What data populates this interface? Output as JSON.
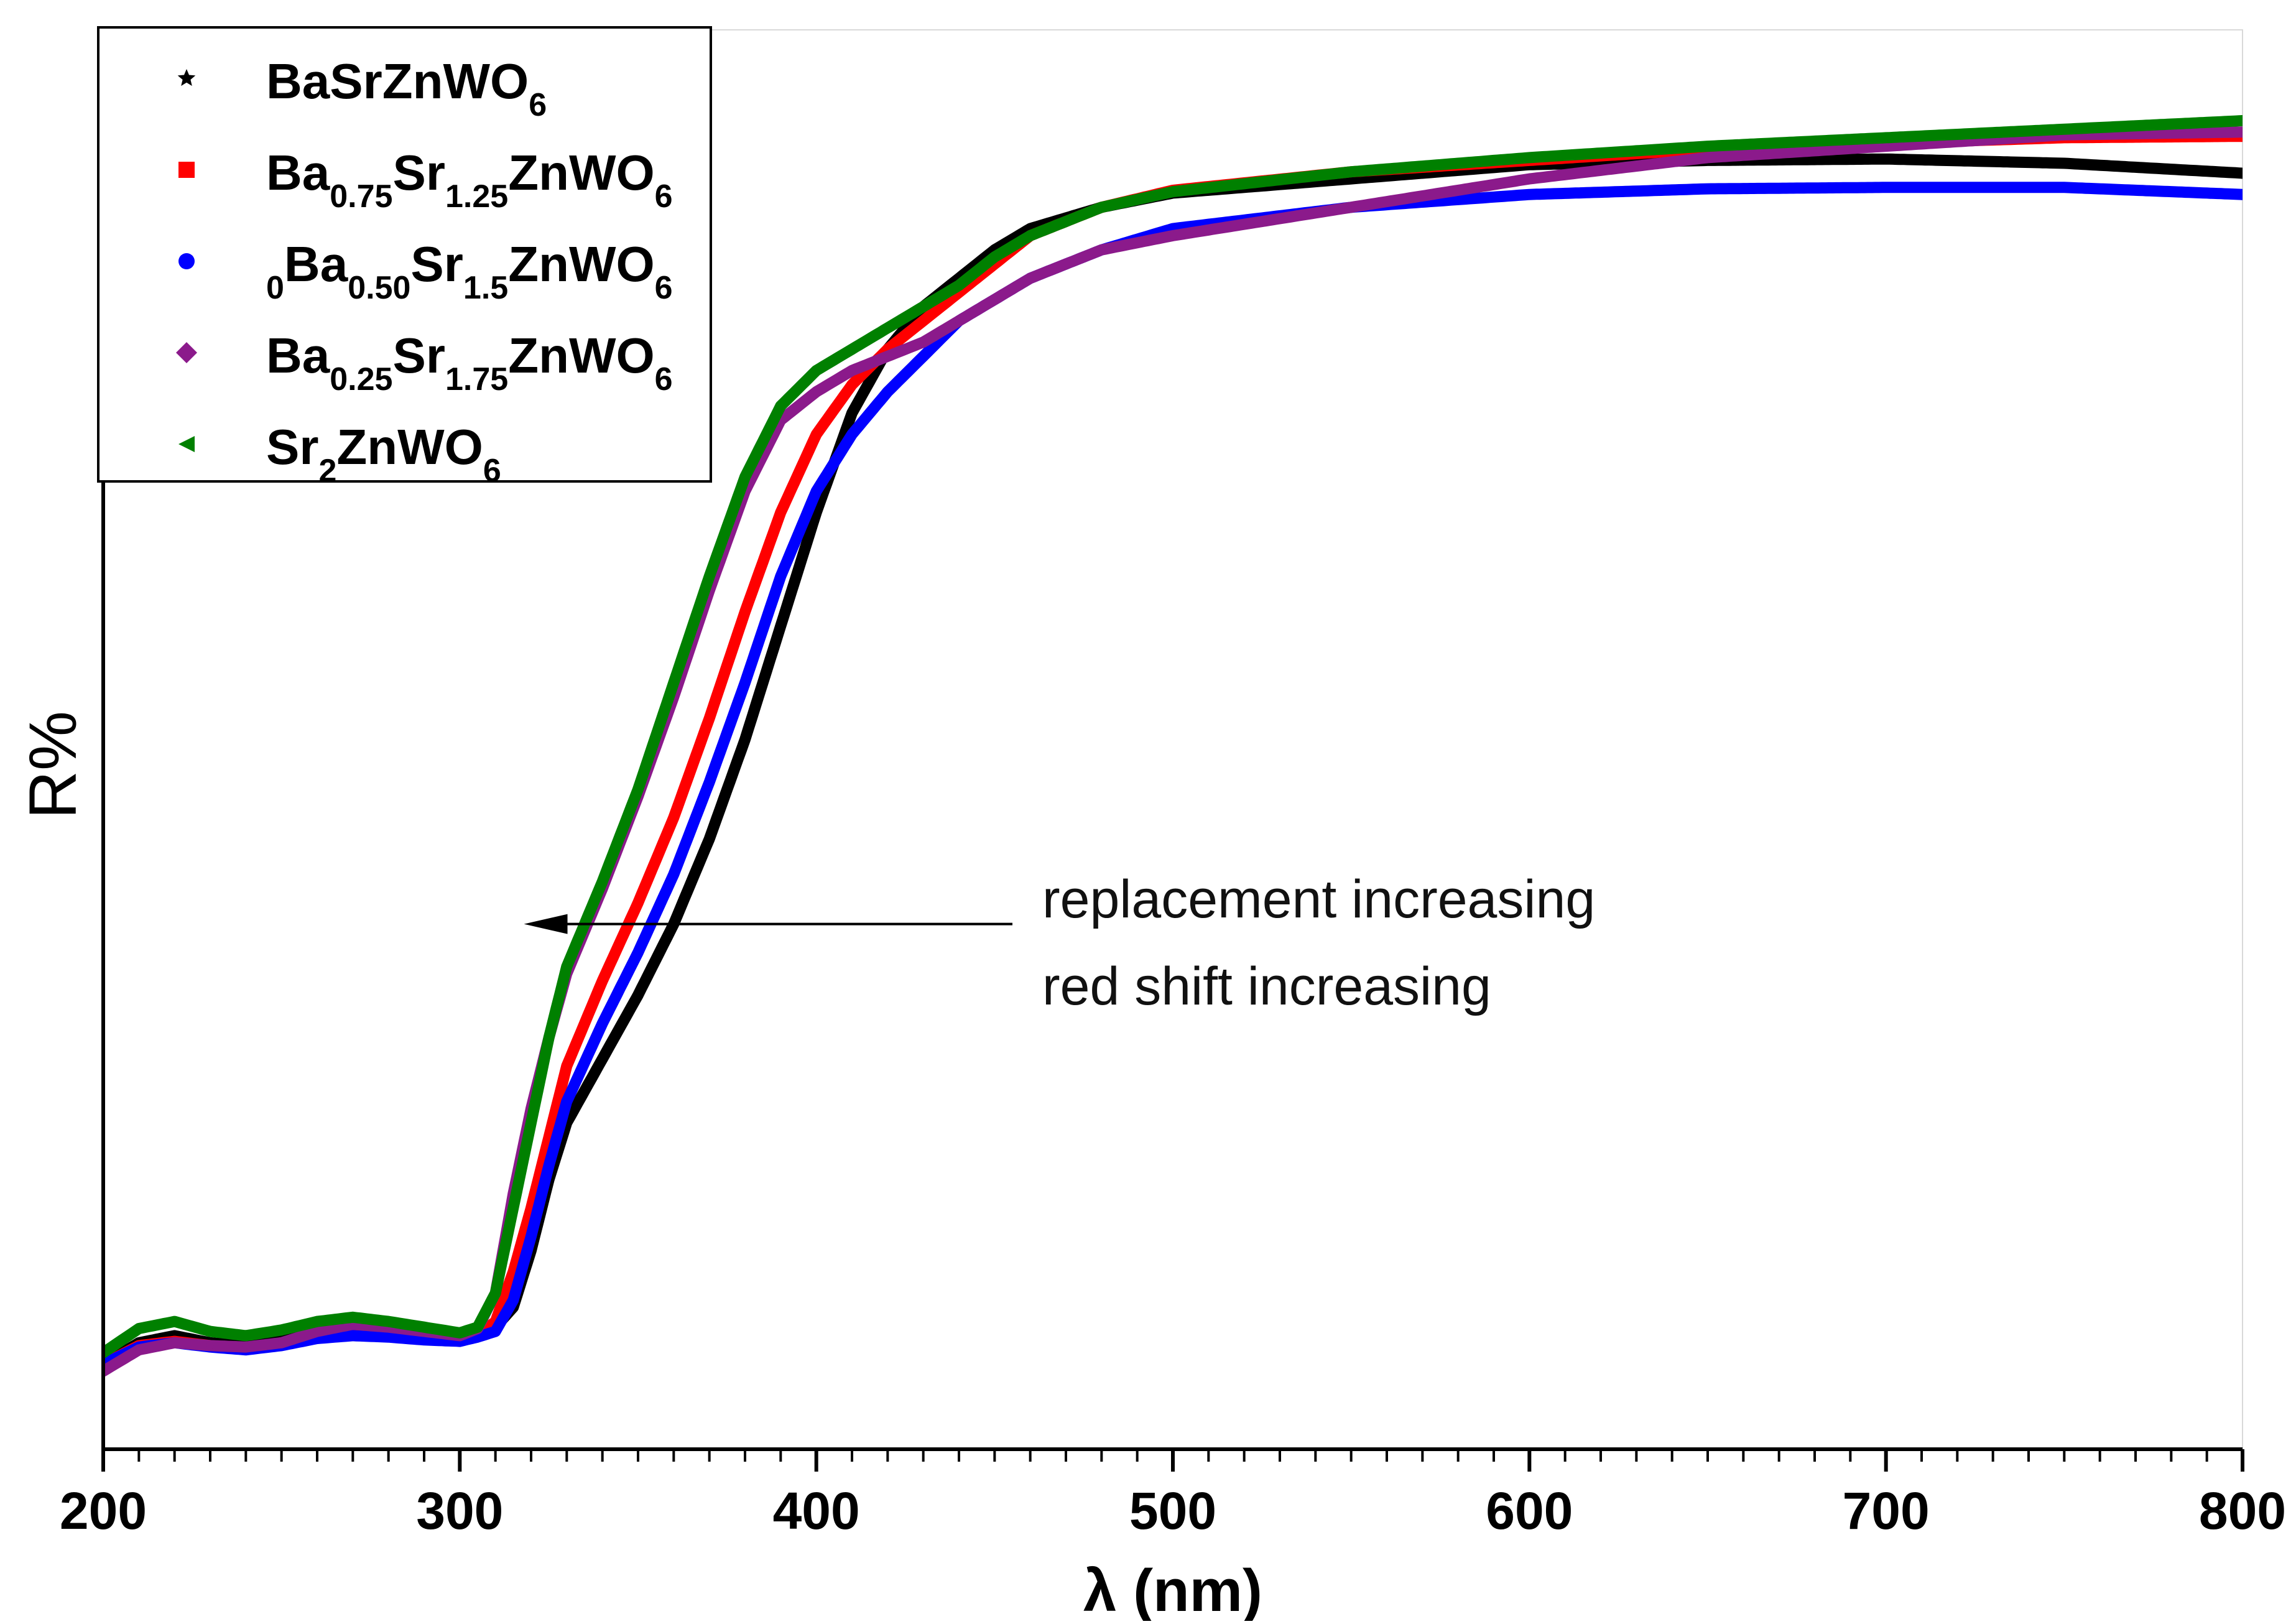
{
  "chart_data": {
    "type": "line",
    "title": "",
    "xlabel": "λ (nm)",
    "ylabel": "R%",
    "xlim": [
      200,
      800
    ],
    "ylim": [
      0,
      100
    ],
    "x_ticks": [
      "200",
      "300",
      "400",
      "500",
      "600",
      "700",
      "800"
    ],
    "y_ticks": [],
    "grid": false,
    "legend_position": "top-left",
    "annotation": {
      "lines": [
        "replacement increasing",
        "red shift increasing"
      ],
      "arrow": "left",
      "arrow_from_x": 455,
      "arrow_to_x": 318,
      "arrow_y": 37
    },
    "series": [
      {
        "name": "BaSrZnWO6",
        "label_parts": [
          [
            "BaSrZnWO",
            ""
          ],
          [
            "6",
            "sub"
          ]
        ],
        "color": "#000000",
        "marker": "star",
        "x": [
          200,
          210,
          220,
          230,
          240,
          250,
          260,
          270,
          280,
          290,
          300,
          305,
          310,
          315,
          320,
          325,
          330,
          340,
          350,
          360,
          370,
          380,
          390,
          400,
          410,
          420,
          430,
          440,
          450,
          460,
          480,
          500,
          550,
          600,
          650,
          700,
          750,
          800
        ],
        "y": [
          6.0,
          7.5,
          8.0,
          7.5,
          7.3,
          7.8,
          8.5,
          8.8,
          8.6,
          8.3,
          8.0,
          8.2,
          8.6,
          10.0,
          14.0,
          19.0,
          23.0,
          27.5,
          32.0,
          37.0,
          43.0,
          50.0,
          58.0,
          66.0,
          73.0,
          77.5,
          80.5,
          82.5,
          84.5,
          86.0,
          87.5,
          88.5,
          89.5,
          90.5,
          90.8,
          90.9,
          90.6,
          89.9
        ]
      },
      {
        "name": "Ba0.75Sr1.25ZnWO6",
        "label_parts": [
          [
            "Ba",
            ""
          ],
          [
            "0.75",
            "sub"
          ],
          [
            "Sr",
            ""
          ],
          [
            "1.25",
            "sub"
          ],
          [
            "ZnWO",
            ""
          ],
          [
            "6",
            "sub"
          ]
        ],
        "color": "#ff0000",
        "marker": "square",
        "x": [
          200,
          210,
          220,
          230,
          240,
          250,
          260,
          270,
          280,
          290,
          300,
          305,
          310,
          315,
          320,
          325,
          330,
          340,
          350,
          360,
          370,
          380,
          390,
          400,
          410,
          420,
          430,
          440,
          450,
          460,
          480,
          500,
          550,
          600,
          650,
          700,
          750,
          800
        ],
        "y": [
          6.0,
          7.3,
          7.6,
          7.3,
          7.1,
          7.5,
          8.0,
          8.2,
          8.0,
          7.8,
          7.7,
          8.0,
          9.0,
          12.5,
          17.0,
          22.0,
          27.0,
          33.0,
          38.5,
          44.5,
          51.5,
          59.0,
          66.0,
          71.5,
          75.0,
          77.5,
          79.5,
          81.5,
          83.5,
          85.5,
          87.5,
          88.7,
          90.0,
          90.8,
          91.6,
          92.0,
          92.4,
          92.5
        ]
      },
      {
        "name": "0Ba0.50Sr1.5ZnWO6",
        "label_parts": [
          [
            "0",
            "sub"
          ],
          [
            "Ba",
            ""
          ],
          [
            "0.50",
            "sub"
          ],
          [
            "Sr",
            ""
          ],
          [
            "1.5",
            "sub"
          ],
          [
            "ZnWO",
            ""
          ],
          [
            "6",
            "sub"
          ]
        ],
        "color": "#0000ff",
        "marker": "circle",
        "x": [
          200,
          210,
          220,
          230,
          240,
          250,
          260,
          270,
          280,
          290,
          300,
          305,
          310,
          315,
          320,
          325,
          330,
          340,
          350,
          360,
          370,
          380,
          390,
          400,
          410,
          420,
          430,
          440,
          450,
          460,
          480,
          500,
          550,
          600,
          650,
          700,
          750,
          800
        ],
        "y": [
          6.0,
          7.2,
          7.5,
          7.2,
          7.0,
          7.3,
          7.8,
          8.0,
          7.9,
          7.7,
          7.6,
          7.9,
          8.3,
          10.5,
          15.0,
          20.0,
          24.5,
          30.0,
          35.0,
          40.5,
          47.0,
          54.0,
          61.5,
          67.5,
          71.5,
          74.5,
          77.0,
          79.5,
          81.0,
          82.5,
          84.5,
          86.0,
          87.5,
          88.4,
          88.8,
          88.9,
          88.9,
          88.4
        ]
      },
      {
        "name": "Ba0.25Sr1.75ZnWO6",
        "label_parts": [
          [
            "Ba",
            ""
          ],
          [
            "0.25",
            "sub"
          ],
          [
            "Sr",
            ""
          ],
          [
            "1.75",
            "sub"
          ],
          [
            "ZnWO",
            ""
          ],
          [
            "6",
            "sub"
          ]
        ],
        "color": "#8b1a8b",
        "marker": "diamond",
        "x": [
          200,
          210,
          220,
          230,
          240,
          250,
          260,
          270,
          280,
          290,
          300,
          305,
          310,
          315,
          320,
          325,
          330,
          340,
          350,
          360,
          370,
          380,
          390,
          400,
          410,
          420,
          430,
          440,
          450,
          460,
          480,
          500,
          550,
          600,
          650,
          700,
          750,
          800
        ],
        "y": [
          5.5,
          7.0,
          7.5,
          7.3,
          7.2,
          7.5,
          8.3,
          8.8,
          8.6,
          8.3,
          8.0,
          8.5,
          11.0,
          18.0,
          24.0,
          29.0,
          33.5,
          39.5,
          46.0,
          53.0,
          60.5,
          67.5,
          72.5,
          74.5,
          76.0,
          77.0,
          78.0,
          79.5,
          81.0,
          82.5,
          84.5,
          85.5,
          87.5,
          89.5,
          91.0,
          91.8,
          92.6,
          92.8
        ]
      },
      {
        "name": "Sr2ZnWO6",
        "label_parts": [
          [
            "Sr",
            ""
          ],
          [
            "2",
            "sub"
          ],
          [
            "ZnWO",
            ""
          ],
          [
            "6",
            "sub"
          ]
        ],
        "color": "#008000",
        "marker": "triangle-left",
        "x": [
          200,
          210,
          220,
          230,
          240,
          250,
          260,
          270,
          280,
          290,
          300,
          305,
          310,
          315,
          320,
          325,
          330,
          340,
          350,
          360,
          370,
          380,
          390,
          400,
          410,
          420,
          430,
          440,
          450,
          460,
          480,
          500,
          550,
          600,
          650,
          700,
          750,
          800
        ],
        "y": [
          6.8,
          8.5,
          9.0,
          8.3,
          8.0,
          8.4,
          9.0,
          9.3,
          9.0,
          8.6,
          8.2,
          8.6,
          11.0,
          17.0,
          23.0,
          29.0,
          34.0,
          40.0,
          46.5,
          54.0,
          61.5,
          68.5,
          73.5,
          76.0,
          77.5,
          79.0,
          80.5,
          82.0,
          84.0,
          85.5,
          87.5,
          88.6,
          90.0,
          91.0,
          91.8,
          92.4,
          93.0,
          93.6
        ]
      }
    ]
  }
}
